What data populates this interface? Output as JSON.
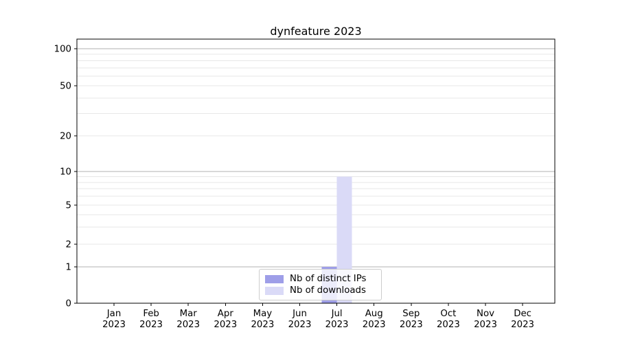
{
  "chart_data": {
    "type": "bar",
    "title": "dynfeature 2023",
    "categories": [
      "Jan 2023",
      "Feb 2023",
      "Mar 2023",
      "Apr 2023",
      "May 2023",
      "Jun 2023",
      "Jul 2023",
      "Aug 2023",
      "Sep 2023",
      "Oct 2023",
      "Nov 2023",
      "Dec 2023"
    ],
    "months": [
      "Jan",
      "Feb",
      "Mar",
      "Apr",
      "May",
      "Jun",
      "Jul",
      "Aug",
      "Sep",
      "Oct",
      "Nov",
      "Dec"
    ],
    "year": "2023",
    "series": [
      {
        "name": "Nb of distinct IPs",
        "color": "#9e9ee8",
        "values": [
          0,
          0,
          0,
          0,
          0,
          0,
          1,
          0,
          0,
          0,
          0,
          0
        ]
      },
      {
        "name": "Nb of downloads",
        "color": "#dadaf7",
        "values": [
          0,
          0,
          0,
          0,
          0,
          0,
          9,
          0,
          0,
          0,
          0,
          0
        ]
      }
    ],
    "xlabel": "",
    "ylabel": "",
    "yscale": "log-like",
    "ytick_labels": [
      "0",
      "1",
      "2",
      "5",
      "10",
      "20",
      "50",
      "100"
    ],
    "ytick_values": [
      0,
      1,
      2,
      5,
      10,
      20,
      50,
      100
    ],
    "minor_grid_values": [
      3,
      4,
      6,
      7,
      8,
      9,
      30,
      40,
      60,
      70,
      80,
      90
    ],
    "decade_grid_values": [
      1,
      10,
      100
    ],
    "ylim": [
      0,
      110
    ],
    "grid": true,
    "legend_position": "bottom-center",
    "colors": {
      "axis": "#000000",
      "major_grid": "#b0b0b0",
      "minor_grid": "#e7e7e7",
      "background": "#ffffff"
    }
  }
}
